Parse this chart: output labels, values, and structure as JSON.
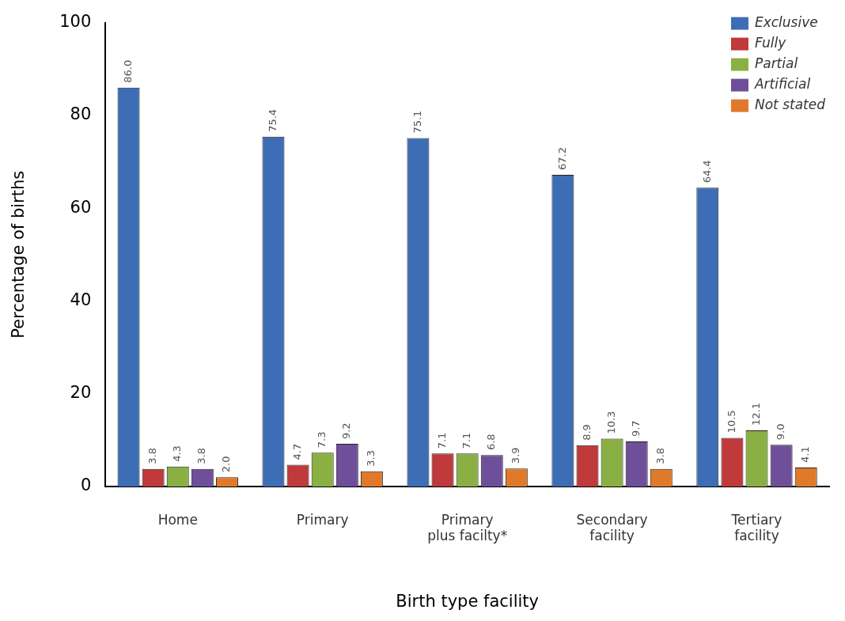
{
  "chart_data": {
    "type": "bar",
    "xlabel": "Birth type facility",
    "ylabel": "Percentage of births",
    "categories": [
      "Home",
      "Primary",
      "Primary plus facilty*",
      "Secondary facility",
      "Tertiary facility"
    ],
    "series": [
      {
        "name": "Exclusive",
        "color": "#3d6db5",
        "values": [
          86.0,
          75.4,
          75.1,
          67.2,
          64.4
        ],
        "value_labels": [
          "86.0",
          "75.4",
          "75.1",
          "67.2",
          "64.4"
        ]
      },
      {
        "name": "Fully",
        "color": "#c0393b",
        "values": [
          3.8,
          4.7,
          7.1,
          8.9,
          10.5
        ],
        "value_labels": [
          "3.8",
          "4.7",
          "7.1",
          "8.9",
          "10.5"
        ]
      },
      {
        "name": "Partial",
        "color": "#8ab043",
        "values": [
          4.3,
          7.3,
          7.1,
          10.3,
          12.1
        ],
        "value_labels": [
          "4.3",
          "7.3",
          "7.1",
          "10.3",
          "12.1"
        ]
      },
      {
        "name": "Artificial",
        "color": "#6f4f9a",
        "values": [
          3.8,
          9.2,
          6.8,
          9.7,
          9.0
        ],
        "value_labels": [
          "3.8",
          "9.2",
          "6.8",
          "9.7",
          "9.0"
        ]
      },
      {
        "name": "Not stated",
        "color": "#e07a2a",
        "values": [
          2.0,
          3.3,
          3.9,
          3.8,
          4.1
        ],
        "value_labels": [
          "2.0",
          "3.3",
          "3.9",
          "3.8",
          "4.1"
        ]
      }
    ],
    "ylim": [
      0,
      100
    ],
    "yticks": [
      0,
      20,
      40,
      60,
      80,
      100
    ],
    "grid": false,
    "legend": "top right"
  }
}
